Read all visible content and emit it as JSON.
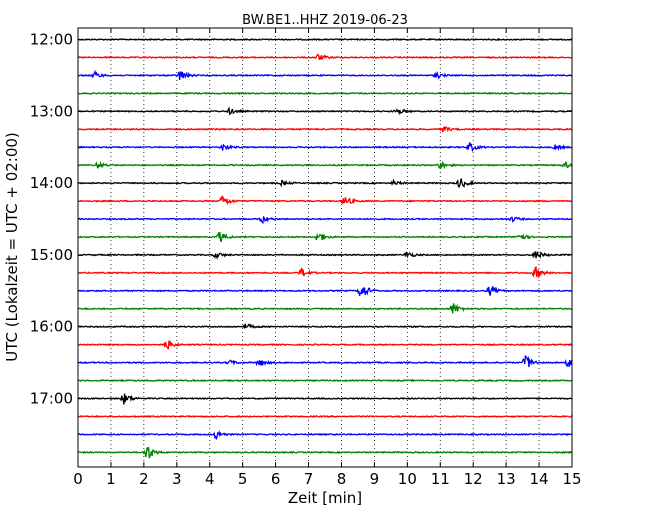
{
  "chart_data": {
    "type": "line",
    "title": "BW.BE1..HHZ 2019-06-23",
    "xlabel": "Zeit  [min]",
    "ylabel": "UTC (Lokalzeit = UTC + 02:00)",
    "xlim": [
      0,
      15
    ],
    "x_ticks": [
      "0",
      "1",
      "2",
      "3",
      "4",
      "5",
      "6",
      "7",
      "8",
      "9",
      "10",
      "11",
      "12",
      "13",
      "14",
      "15"
    ],
    "y_ticks": [
      "12:00",
      "13:00",
      "14:00",
      "15:00",
      "16:00",
      "17:00"
    ],
    "grid": "vertical dotted",
    "trace_start_times": [
      "12:00",
      "12:15",
      "12:30",
      "12:45",
      "13:00",
      "13:15",
      "13:30",
      "13:45",
      "14:00",
      "14:15",
      "14:30",
      "14:45",
      "15:00",
      "15:15",
      "15:30",
      "15:45",
      "16:00",
      "16:15",
      "16:30",
      "16:45",
      "17:00",
      "17:15",
      "17:30",
      "17:45"
    ],
    "trace_colors": [
      "#000000",
      "#ff0000",
      "#0000ff",
      "#008000"
    ],
    "events": [
      [],
      [
        [
          7.3,
          0.6
        ]
      ],
      [
        [
          0.5,
          0.6
        ],
        [
          3.1,
          1.0
        ],
        [
          10.9,
          0.5
        ]
      ],
      [],
      [
        [
          4.6,
          0.5
        ],
        [
          9.7,
          0.5
        ]
      ],
      [
        [
          11.1,
          0.5
        ]
      ],
      [
        [
          4.4,
          0.6
        ],
        [
          11.9,
          0.8
        ],
        [
          14.5,
          0.4
        ]
      ],
      [
        [
          0.6,
          0.5
        ],
        [
          11.0,
          0.6
        ],
        [
          14.8,
          0.5
        ]
      ],
      [
        [
          6.2,
          0.4
        ],
        [
          9.6,
          0.4
        ],
        [
          11.6,
          1.0
        ]
      ],
      [
        [
          4.4,
          1.0
        ],
        [
          8.1,
          0.9
        ]
      ],
      [
        [
          5.6,
          0.6
        ],
        [
          13.2,
          0.4
        ]
      ],
      [
        [
          4.3,
          0.9
        ],
        [
          7.3,
          0.9
        ],
        [
          13.4,
          0.7
        ]
      ],
      [
        [
          4.2,
          0.5
        ],
        [
          10.0,
          0.6
        ],
        [
          13.9,
          0.8
        ]
      ],
      [
        [
          6.8,
          0.8
        ],
        [
          13.9,
          1.0
        ]
      ],
      [
        [
          8.6,
          1.6
        ],
        [
          12.5,
          0.8
        ]
      ],
      [
        [
          11.4,
          1.0
        ]
      ],
      [
        [
          5.1,
          0.5
        ]
      ],
      [
        [
          2.7,
          0.9
        ]
      ],
      [
        [
          4.6,
          0.4
        ],
        [
          5.5,
          0.6
        ],
        [
          13.6,
          1.4
        ],
        [
          14.9,
          0.9
        ]
      ],
      [],
      [
        [
          1.4,
          1.0
        ]
      ],
      [],
      [
        [
          4.2,
          0.8
        ]
      ],
      [
        [
          2.1,
          1.5
        ]
      ]
    ]
  }
}
